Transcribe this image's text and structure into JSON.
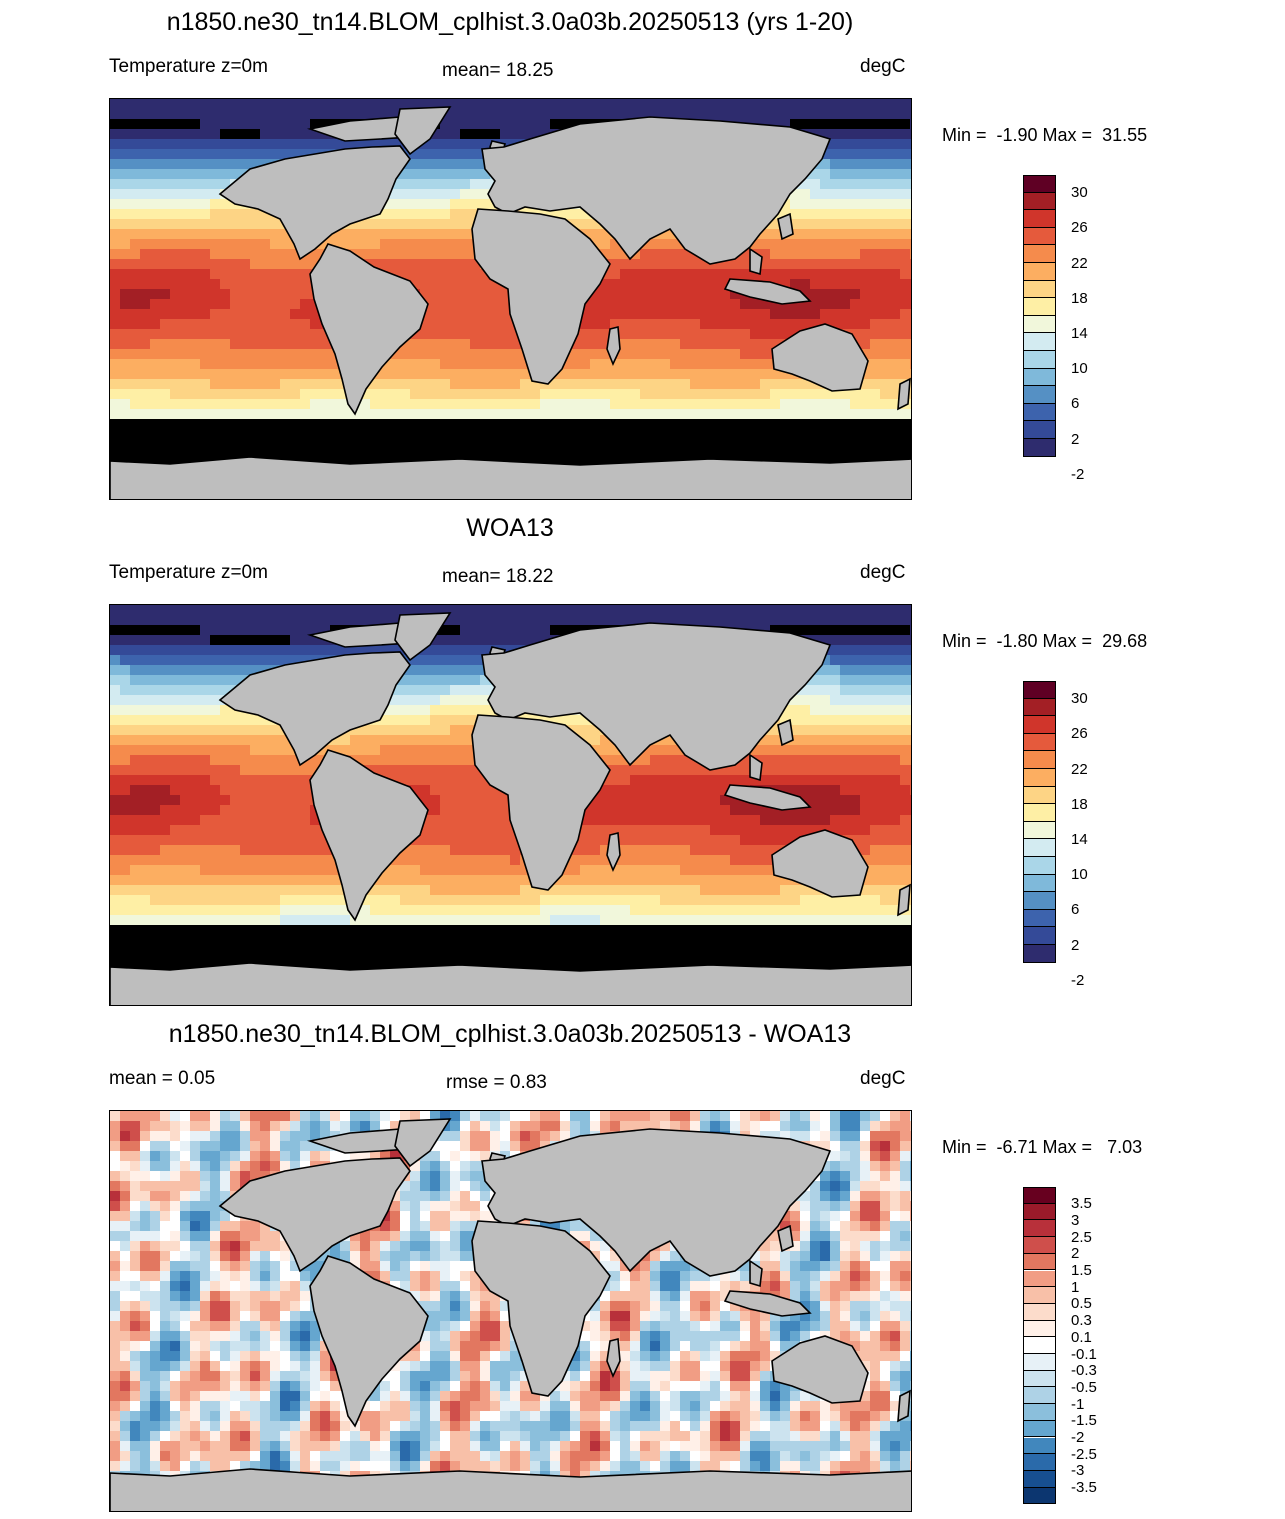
{
  "panels": [
    {
      "title": "n1850.ne30_tn14.BLOM_cplhist.3.0a03b.20250513 (yrs 1-20)",
      "left": "Temperature z=0m",
      "mid": "mean=  18.25",
      "right": "degC",
      "minmax": "Min =  -1.90 Max =  31.55",
      "field": "temp",
      "colorbar": {
        "colors": [
          "#5f0024",
          "#a31f25",
          "#d0352b",
          "#e55a3c",
          "#f58b4c",
          "#fcae61",
          "#fdd485",
          "#feefa5",
          "#f1f7db",
          "#d3ebf1",
          "#aad6e8",
          "#7fb9da",
          "#5590c4",
          "#3d63ad",
          "#344a98",
          "#2e2c6e"
        ],
        "labels": [
          "30",
          "26",
          "22",
          "18",
          "14",
          "10",
          "6",
          "2",
          "-2"
        ],
        "label_every": 2,
        "label_offset": 1
      }
    },
    {
      "title": "WOA13",
      "left": "Temperature z=0m",
      "mid": "mean=  18.22",
      "right": "degC",
      "minmax": "Min =  -1.80 Max =  29.68",
      "field": "temp",
      "colorbar": {
        "colors": [
          "#5f0024",
          "#a31f25",
          "#d0352b",
          "#e55a3c",
          "#f58b4c",
          "#fcae61",
          "#fdd485",
          "#feefa5",
          "#f1f7db",
          "#d3ebf1",
          "#aad6e8",
          "#7fb9da",
          "#5590c4",
          "#3d63ad",
          "#344a98",
          "#2e2c6e"
        ],
        "labels": [
          "30",
          "26",
          "22",
          "18",
          "14",
          "10",
          "6",
          "2",
          "-2"
        ],
        "label_every": 2,
        "label_offset": 1
      }
    },
    {
      "title": "n1850.ne30_tn14.BLOM_cplhist.3.0a03b.20250513 - WOA13",
      "left": "mean =   0.05",
      "mid": "rmse =   0.83",
      "right": "degC",
      "minmax": "Min =  -6.71 Max =   7.03",
      "field": "diff",
      "colorbar": {
        "colors": [
          "#67001f",
          "#9a1a2a",
          "#b8303a",
          "#cf4f4b",
          "#e27760",
          "#f19d84",
          "#f8c0a8",
          "#fcdccb",
          "#fff0e8",
          "#ffffff",
          "#e7f1f7",
          "#cce3ef",
          "#aed2e6",
          "#8bbfdc",
          "#65a6cf",
          "#4187bd",
          "#2a6aaa",
          "#174f91",
          "#0c3670"
        ],
        "labels": [
          "3.5",
          "3",
          "2.5",
          "2",
          "1.5",
          "1",
          "0.5",
          "0.3",
          "0.1",
          "-0.1",
          "-0.3",
          "-0.5",
          "-1",
          "-1.5",
          "-2",
          "-2.5",
          "-3",
          "-3.5"
        ],
        "label_every": 1,
        "label_offset": 1
      }
    }
  ]
}
